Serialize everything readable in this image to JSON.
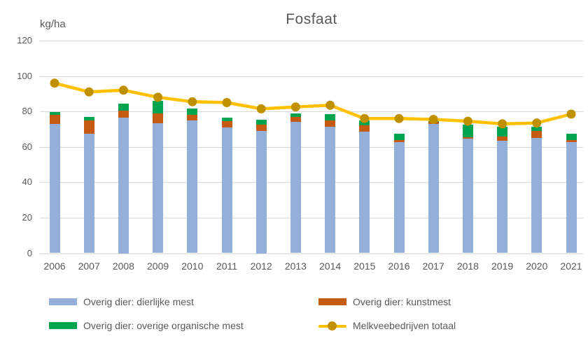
{
  "title": "Fosfaat",
  "y_axis_unit_label": "kg/ha",
  "colors": {
    "background": "#ffffff",
    "gridline": "#d9d9d9",
    "axis_text": "#595959",
    "title_text": "#595959",
    "bar_blue": "#95afdb",
    "bar_orange": "#c55a11",
    "bar_green": "#00a44e",
    "line_yellow": "#ffc000",
    "marker_gold": "#bf9000"
  },
  "chart_data": {
    "type": "bar",
    "subtype": "stacked-bars-with-line-overlay",
    "title": "Fosfaat",
    "ylabel": "kg/ha",
    "xlabel": "",
    "ylim": [
      0,
      120
    ],
    "yticks": [
      0,
      20,
      40,
      60,
      80,
      100,
      120
    ],
    "grid": true,
    "legend_position": "bottom",
    "categories": [
      "2006",
      "2007",
      "2008",
      "2009",
      "2010",
      "2011",
      "2012",
      "2013",
      "2014",
      "2015",
      "2016",
      "2017",
      "2018",
      "2019",
      "2020",
      "2021"
    ],
    "series": [
      {
        "key": "dierlijke_mest",
        "name": "Overig dier: dierlijke mest",
        "render": "bar-stack",
        "color": "#95afdb",
        "values": [
          73,
          67.5,
          76.5,
          73.5,
          75,
          71,
          69,
          74,
          71.5,
          68.5,
          62.5,
          73,
          64.5,
          63.5,
          65,
          62.5
        ]
      },
      {
        "key": "kunstmest",
        "name": "Overig dier: kunstmest",
        "render": "bar-stack",
        "color": "#c55a11",
        "values": [
          5,
          7.5,
          4,
          5.5,
          3,
          3.5,
          3.5,
          3,
          3.5,
          3.5,
          1.5,
          1,
          1,
          2.5,
          4,
          1.5
        ]
      },
      {
        "key": "organische_mest",
        "name": "Overig dier: overige organische mest",
        "render": "bar-stack",
        "color": "#00a44e",
        "values": [
          1.5,
          2,
          4,
          7,
          3.5,
          2,
          3,
          2,
          3.5,
          3,
          3.5,
          0.5,
          7,
          5.5,
          2.5,
          3.5
        ]
      },
      {
        "key": "totaal",
        "name": "Melkveebedrijven totaal",
        "render": "line",
        "color": "#ffc000",
        "marker_color": "#bf9000",
        "values": [
          96,
          91,
          92,
          88,
          85.5,
          85,
          81.5,
          82.5,
          83.5,
          76,
          76,
          75.5,
          74.5,
          73,
          73.5,
          78.5
        ]
      }
    ]
  }
}
